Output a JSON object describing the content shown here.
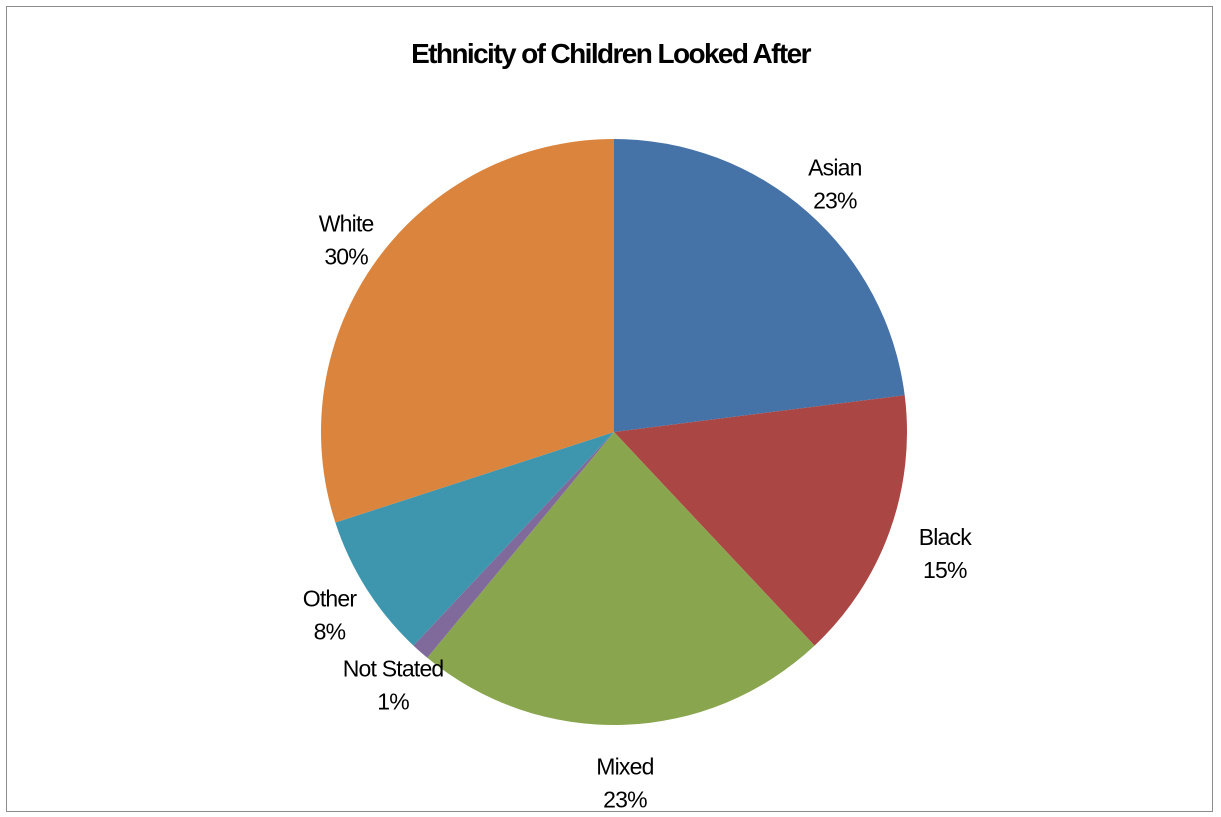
{
  "chart_data": {
    "type": "pie",
    "title": "Ethnicity of Children Looked After",
    "categories": [
      "Asian",
      "Black",
      "Mixed",
      "Not Stated",
      "Other",
      "White"
    ],
    "values": [
      23,
      15,
      23,
      1,
      8,
      30
    ],
    "labels": [
      "23%",
      "15%",
      "23%",
      "1%",
      "8%",
      "30%"
    ],
    "colors": [
      "#4572a7",
      "#aa4643",
      "#89a54e",
      "#80699b",
      "#3d96ae",
      "#db843d"
    ],
    "start_angle_deg": 0,
    "direction": "clockwise",
    "legend": "none"
  }
}
